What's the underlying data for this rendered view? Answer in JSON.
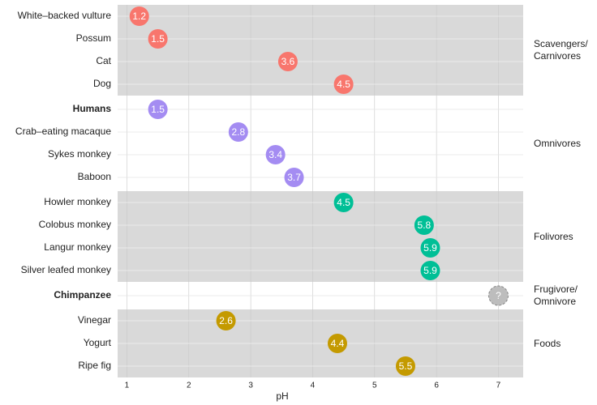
{
  "chart_data": {
    "type": "dot",
    "xlabel": "pH",
    "xlim": [
      0.85,
      7.4
    ],
    "xticks": [
      1,
      2,
      3,
      4,
      5,
      6,
      7
    ],
    "grid": true,
    "groups": [
      {
        "name": "Scavengers/ Carnivores",
        "color": "#f8766d",
        "panel": "#d9d9d9",
        "categories": [
          "White–backed vulture",
          "Possum",
          "Cat",
          "Dog"
        ],
        "values": [
          1.2,
          1.5,
          3.6,
          4.5
        ],
        "bold": []
      },
      {
        "name": "Omnivores",
        "color": "#a48cf2",
        "panel": "#ffffff",
        "categories": [
          "Humans",
          "Crab–eating macaque",
          "Sykes monkey",
          "Baboon"
        ],
        "values": [
          1.5,
          2.8,
          3.4,
          3.7
        ],
        "bold": [
          0
        ]
      },
      {
        "name": "Folivores",
        "color": "#00bf96",
        "panel": "#d9d9d9",
        "categories": [
          "Howler monkey",
          "Colobus monkey",
          "Langur monkey",
          "Silver leafed monkey"
        ],
        "values": [
          4.5,
          5.8,
          5.9,
          5.9
        ],
        "bold": []
      },
      {
        "name": "Frugivore/ Omnivore",
        "color": "#bdbdbd",
        "panel": "#ffffff",
        "dashed": true,
        "categories": [
          "Chimpanzee"
        ],
        "values": [
          7
        ],
        "value_labels": [
          "?"
        ],
        "bold": [
          0
        ]
      },
      {
        "name": "Foods",
        "color": "#c49a00",
        "panel": "#d9d9d9",
        "categories": [
          "Vinegar",
          "Yogurt",
          "Ripe fig"
        ],
        "values": [
          2.6,
          4.4,
          5.5
        ],
        "bold": []
      }
    ]
  }
}
